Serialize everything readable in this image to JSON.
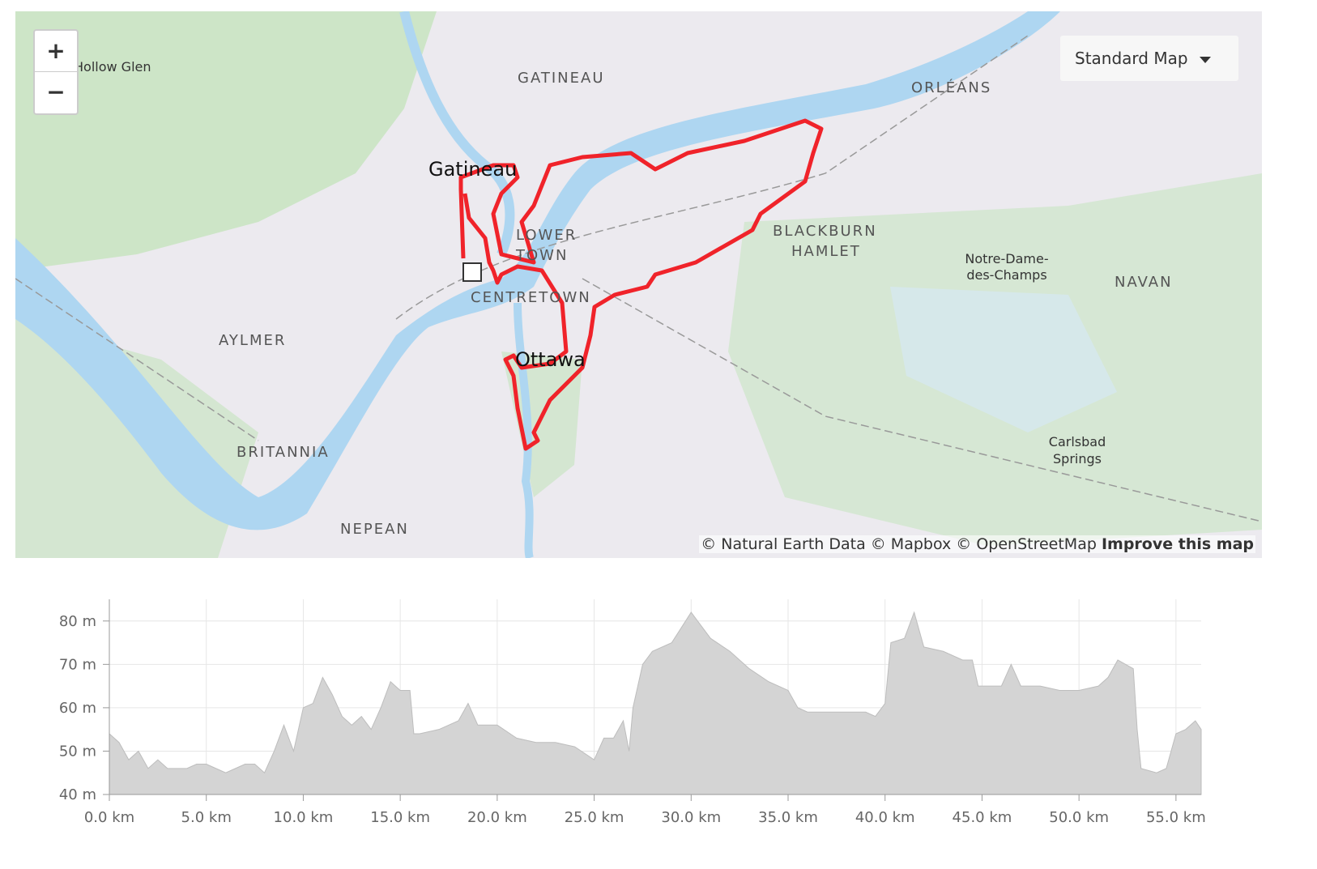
{
  "map": {
    "labels": [
      "Hollow Glen",
      "GATINEAU",
      "ORLÉANS",
      "Gatineau",
      "LOWER",
      "TOWN",
      "BLACKBURN",
      "HAMLET",
      "Notre-Dame-",
      "des-Champs",
      "NAVAN",
      "CENTRETOWN",
      "AYLMER",
      "Ottawa",
      "BRITANNIA",
      "Carlsbad",
      "Springs",
      "NEPEAN"
    ],
    "zoom_in": "+",
    "zoom_out": "−",
    "style_button": "Standard Map",
    "attribution": "© Natural Earth Data © Mapbox © OpenStreetMap",
    "improve_link": "Improve this map"
  },
  "chart_data": {
    "type": "area",
    "color": "#d4d4d4",
    "x": [
      0,
      0.5,
      1,
      1.5,
      2,
      2.5,
      3,
      3.5,
      4,
      4.5,
      5,
      5.5,
      6,
      6.5,
      7,
      7.5,
      8,
      8.5,
      9,
      9.5,
      10,
      10.5,
      11,
      11.5,
      12,
      12.5,
      13,
      13.5,
      14,
      14.5,
      15,
      15.5,
      15.7,
      16,
      17,
      18,
      18.5,
      19,
      20,
      21,
      22,
      23,
      24,
      25,
      25.5,
      26,
      26.5,
      26.8,
      27,
      27.5,
      28,
      29,
      30,
      31,
      32,
      33,
      34,
      35,
      35.5,
      36,
      37,
      38,
      39,
      39.5,
      40,
      40.3,
      41,
      41.5,
      42,
      43,
      44,
      44.5,
      44.8,
      45,
      46,
      46.5,
      47,
      48,
      49,
      50,
      51,
      51.5,
      52,
      52.8,
      53,
      53.2,
      54,
      54.5,
      55,
      55.5,
      56,
      56.3
    ],
    "values": [
      54,
      52,
      48,
      50,
      46,
      48,
      46,
      46,
      46,
      47,
      47,
      46,
      45,
      46,
      47,
      47,
      45,
      50,
      56,
      50,
      60,
      61,
      67,
      63,
      58,
      56,
      58,
      55,
      60,
      66,
      64,
      64,
      54,
      54,
      55,
      57,
      61,
      56,
      56,
      53,
      52,
      52,
      51,
      48,
      53,
      53,
      57,
      50,
      60,
      70,
      73,
      75,
      82,
      76,
      73,
      69,
      66,
      64,
      60,
      59,
      59,
      59,
      59,
      58,
      61,
      75,
      76,
      82,
      74,
      73,
      71,
      71,
      65,
      65,
      65,
      70,
      65,
      65,
      64,
      64,
      65,
      67,
      71,
      69,
      55,
      46,
      45,
      46,
      54,
      55,
      57,
      55
    ],
    "xlim": [
      0,
      56.3
    ],
    "ylim": [
      40,
      85
    ],
    "xticks": [
      {
        "value": 0,
        "label": "0.0 km"
      },
      {
        "value": 5,
        "label": "5.0 km"
      },
      {
        "value": 10,
        "label": "10.0 km"
      },
      {
        "value": 15,
        "label": "15.0 km"
      },
      {
        "value": 20,
        "label": "20.0 km"
      },
      {
        "value": 25,
        "label": "25.0 km"
      },
      {
        "value": 30,
        "label": "30.0 km"
      },
      {
        "value": 35,
        "label": "35.0 km"
      },
      {
        "value": 40,
        "label": "40.0 km"
      },
      {
        "value": 45,
        "label": "45.0 km"
      },
      {
        "value": 50,
        "label": "50.0 km"
      },
      {
        "value": 55,
        "label": "55.0 km"
      }
    ],
    "yticks": [
      {
        "value": 40,
        "label": "40 m"
      },
      {
        "value": 50,
        "label": "50 m"
      },
      {
        "value": 60,
        "label": "60 m"
      },
      {
        "value": 70,
        "label": "70 m"
      },
      {
        "value": 80,
        "label": "80 m"
      }
    ],
    "grid": true
  }
}
